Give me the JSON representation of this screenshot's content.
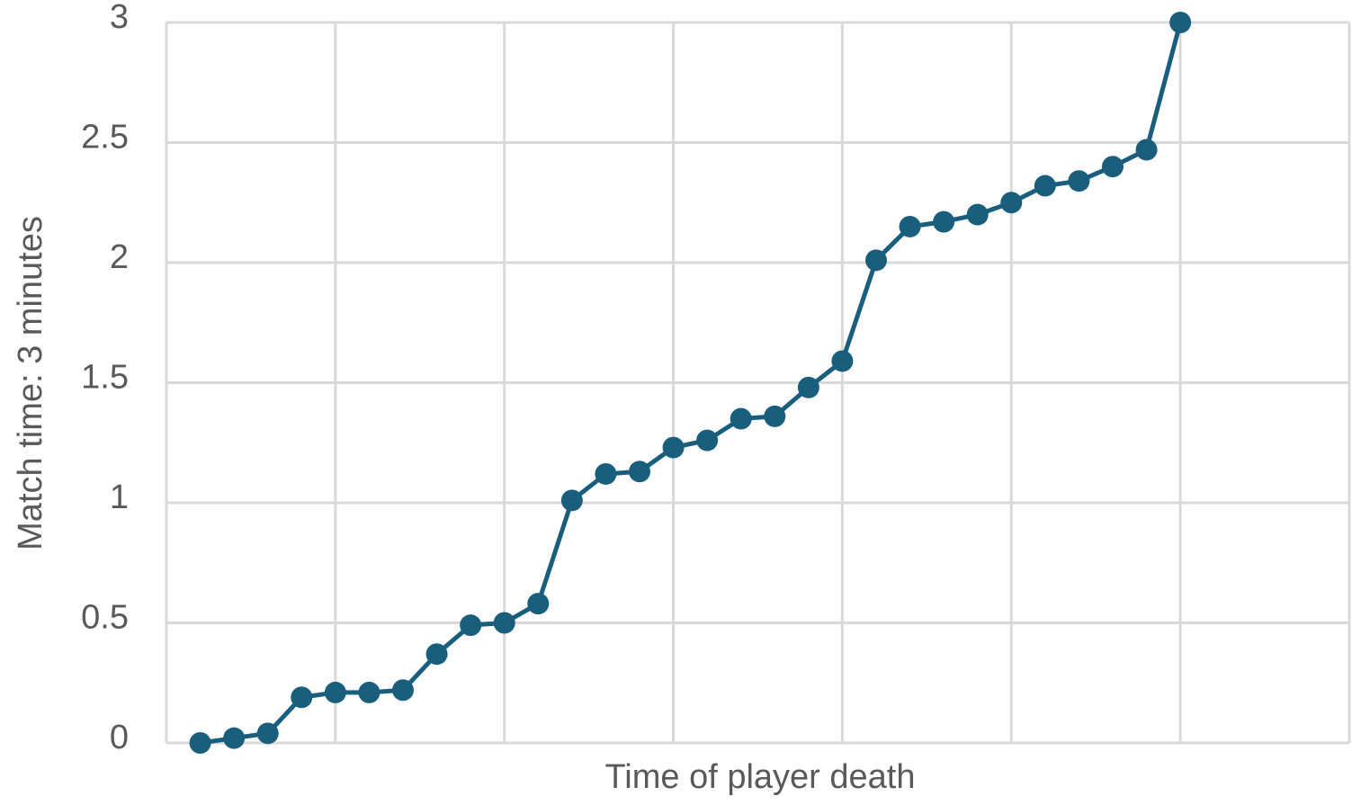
{
  "chart_data": {
    "type": "line",
    "x_label": "Time of player death",
    "y_label": "Match time: 3 minutes",
    "categories": [
      null,
      null,
      null,
      null,
      null,
      null,
      null,
      null,
      null,
      null,
      null,
      null,
      null,
      null,
      null,
      null,
      null,
      null,
      null,
      null,
      null,
      null,
      null,
      null,
      null,
      null,
      null,
      null,
      null,
      null
    ],
    "series": [
      {
        "name": "Match time",
        "color": "#1a5e7e",
        "values": [
          0,
          0.02,
          0.04,
          0.19,
          0.21,
          0.21,
          0.22,
          0.37,
          0.49,
          0.5,
          0.58,
          1.01,
          1.12,
          1.13,
          1.23,
          1.26,
          1.35,
          1.36,
          1.48,
          1.59,
          2.01,
          2.15,
          2.17,
          2.2,
          2.25,
          2.32,
          2.34,
          2.4,
          2.47,
          3.0
        ]
      }
    ],
    "ylim": [
      0,
      3
    ],
    "yticks": [
      0,
      0.5,
      1,
      1.5,
      2,
      2.5,
      3
    ],
    "grid": true
  }
}
